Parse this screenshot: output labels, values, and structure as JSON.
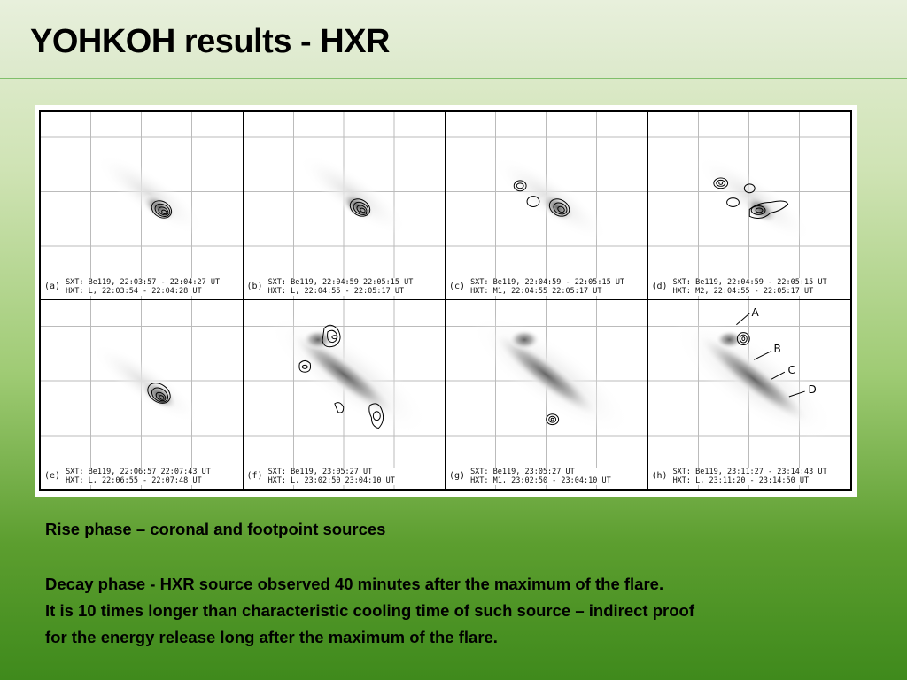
{
  "title": "YOHKOH results - HXR",
  "panels": [
    {
      "letter": "(a)",
      "sxt": "SXT:  Be119,  22:03:57 - 22:04:27 UT",
      "hxt": "HXT:  L,  22:03:54 - 22:04:28 UT"
    },
    {
      "letter": "(b)",
      "sxt": "SXT:  Be119,  22:04:59   22:05:15 UT",
      "hxt": "HXT:  L,  22:04:55 - 22:05:17 UT"
    },
    {
      "letter": "(c)",
      "sxt": "SXT:  Be119,  22:04:59 - 22:05:15 UT",
      "hxt": "HXT:  M1,  22:04:55   22:05:17 UT"
    },
    {
      "letter": "(d)",
      "sxt": "SXT:  Be119,  22:04:59 - 22:05:15 UT",
      "hxt": "HXT:  M2,  22:04:55 - 22:05:17 UT"
    },
    {
      "letter": "(e)",
      "sxt": "SXT:  Be119,  22:06:57   22:07:43 UT",
      "hxt": "HXT:  L,  22:06:55 - 22:07:48 UT"
    },
    {
      "letter": "(f)",
      "sxt": "SXT:  Be119,  23:05:27 UT",
      "hxt": "HXT:  L,  23:02:50   23:04:10 UT"
    },
    {
      "letter": "(g)",
      "sxt": "SXT:  Be119,  23:05:27 UT",
      "hxt": "HXT:  M1,  23:02:50 - 23:04:10 UT"
    },
    {
      "letter": "(h)",
      "sxt": "SXT:  Be119,  23:11:27 - 23:14:43 UT",
      "hxt": "HXT:  L,  23:11:20 - 23:14:50 UT"
    }
  ],
  "source_labels": [
    "A",
    "B",
    "C",
    "D"
  ],
  "text": {
    "line1": "Rise phase – coronal and footpoint sources",
    "line2": "Decay phase  - HXR source observed 40 minutes after the maximum of the flare.",
    "line3": "It is 10 times  longer than characteristic cooling time of such source – indirect proof",
    "line4": "for the energy release long after the maximum of the flare."
  }
}
